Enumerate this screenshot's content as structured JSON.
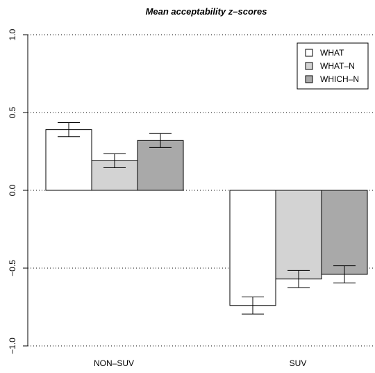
{
  "chart_data": {
    "type": "bar",
    "title": "Mean acceptability z–scores",
    "xlabel": "",
    "ylabel": "",
    "categories": [
      "NON–SUV",
      "SUV"
    ],
    "series": [
      {
        "name": "WHAT",
        "color": "#ffffff",
        "values": [
          0.39,
          -0.74
        ],
        "error": [
          0.045,
          0.055
        ]
      },
      {
        "name": "WHAT–N",
        "color": "#d3d3d3",
        "values": [
          0.19,
          -0.57
        ],
        "error": [
          0.045,
          0.055
        ]
      },
      {
        "name": "WHICH–N",
        "color": "#a9a9a9",
        "values": [
          0.32,
          -0.54
        ],
        "error": [
          0.045,
          0.055
        ]
      }
    ],
    "ylim": [
      -1.0,
      1.0
    ],
    "yticks": [
      "1.0",
      "0.5",
      "0.0",
      "-0.5",
      "-1.0"
    ],
    "grid": "dotted horizontal at ticks",
    "legend_position": "top-right"
  }
}
